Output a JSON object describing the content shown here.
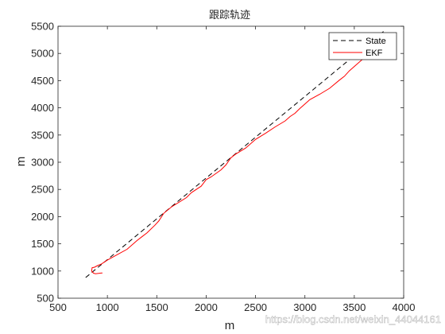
{
  "chart_data": {
    "type": "line",
    "title": "跟踪轨迹",
    "xlabel": "m",
    "ylabel": "m",
    "xlim": [
      500,
      4000
    ],
    "ylim": [
      500,
      5500
    ],
    "xticks": [
      500,
      1000,
      1500,
      2000,
      2500,
      3000,
      3500,
      4000
    ],
    "yticks": [
      500,
      1000,
      1500,
      2000,
      2500,
      3000,
      3500,
      4000,
      4500,
      5000,
      5500
    ],
    "grid": false,
    "legend_position": "top-right",
    "series": [
      {
        "name": "State",
        "color": "#000000",
        "style": "dashed",
        "x": [
          780,
          3800
        ],
        "y": [
          880,
          5410
        ]
      },
      {
        "name": "EKF",
        "color": "#ff0000",
        "style": "solid",
        "x": [
          950,
          880,
          860,
          840,
          845,
          870,
          900,
          940,
          1000,
          1080,
          1200,
          1300,
          1350,
          1400,
          1480,
          1520,
          1570,
          1650,
          1800,
          1850,
          1950,
          2000,
          2050,
          2150,
          2200,
          2250,
          2300,
          2400,
          2500,
          2600,
          2700,
          2800,
          2850,
          2900,
          2950,
          3050,
          3150,
          3250,
          3350,
          3400,
          3450,
          3550,
          3650,
          3750,
          3800
        ],
        "y": [
          965,
          950,
          960,
          1000,
          1060,
          1070,
          1100,
          1130,
          1200,
          1280,
          1400,
          1560,
          1630,
          1700,
          1840,
          1920,
          2060,
          2180,
          2350,
          2440,
          2560,
          2680,
          2730,
          2860,
          2950,
          3080,
          3150,
          3260,
          3420,
          3530,
          3650,
          3760,
          3840,
          3900,
          3990,
          4150,
          4250,
          4360,
          4510,
          4580,
          4680,
          4840,
          5000,
          5170,
          5360
        ]
      }
    ]
  },
  "watermark": "https://blog.csdn.net/weixin_44044161"
}
